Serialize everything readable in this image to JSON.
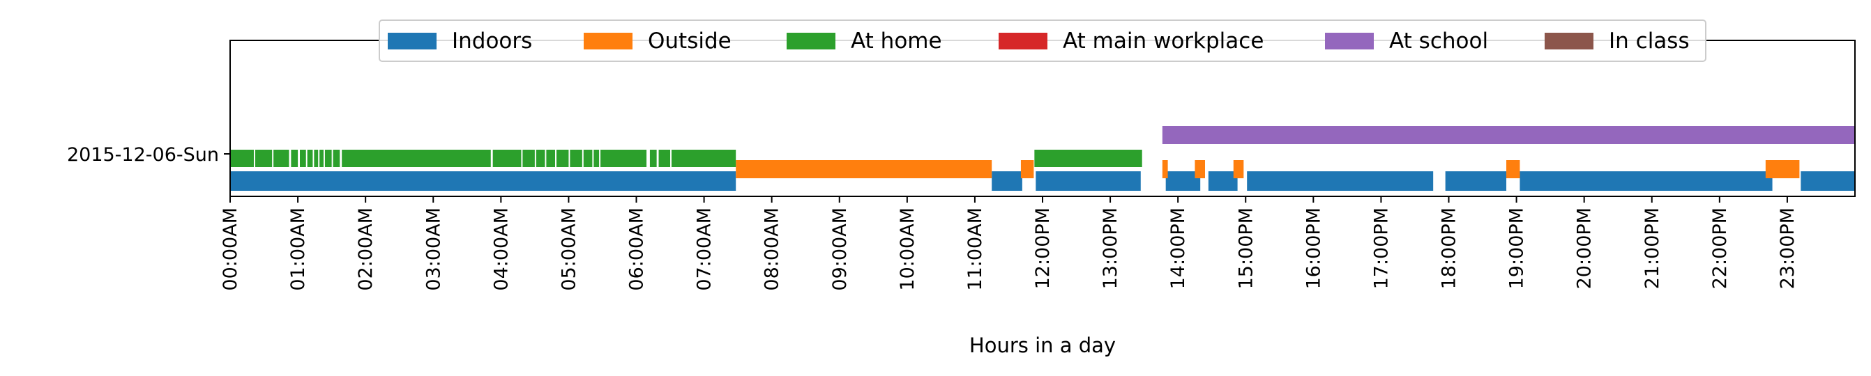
{
  "chart_data": {
    "type": "timeline",
    "title": "",
    "xlabel": "Hours in a day",
    "ylabel": "",
    "xlim": [
      0,
      24
    ],
    "x_unit": "hours",
    "grid": false,
    "legend_placement": "top-center",
    "rows": [
      "2015-12-06-Sun"
    ],
    "x_tick_labels": [
      "00:00AM",
      "01:00AM",
      "02:00AM",
      "03:00AM",
      "04:00AM",
      "05:00AM",
      "06:00AM",
      "07:00AM",
      "08:00AM",
      "09:00AM",
      "10:00AM",
      "11:00AM",
      "12:00PM",
      "13:00PM",
      "14:00PM",
      "15:00PM",
      "16:00PM",
      "17:00PM",
      "18:00PM",
      "19:00PM",
      "20:00PM",
      "21:00PM",
      "22:00PM",
      "23:00PM"
    ],
    "series": [
      {
        "name": "Indoors",
        "color": "#1f77b4",
        "intervals": [
          [
            0.0,
            7.47
          ],
          [
            11.25,
            11.7
          ],
          [
            11.9,
            13.45
          ],
          [
            13.82,
            14.33
          ],
          [
            14.45,
            14.88
          ],
          [
            15.02,
            17.77
          ],
          [
            17.95,
            18.85
          ],
          [
            19.05,
            22.78
          ],
          [
            23.2,
            24.0
          ]
        ]
      },
      {
        "name": "Outside",
        "color": "#ff7f0e",
        "intervals": [
          [
            7.47,
            11.25
          ],
          [
            11.68,
            11.87
          ],
          [
            13.77,
            13.85
          ],
          [
            14.25,
            14.4
          ],
          [
            14.82,
            14.97
          ],
          [
            18.85,
            19.05
          ],
          [
            22.68,
            23.18
          ]
        ]
      },
      {
        "name": "At home",
        "color": "#2ca02c",
        "intervals": [
          [
            0.0,
            0.35
          ],
          [
            0.37,
            0.62
          ],
          [
            0.64,
            0.87
          ],
          [
            0.9,
            1.0
          ],
          [
            1.03,
            1.12
          ],
          [
            1.14,
            1.22
          ],
          [
            1.24,
            1.3
          ],
          [
            1.32,
            1.38
          ],
          [
            1.4,
            1.5
          ],
          [
            1.52,
            1.62
          ],
          [
            1.65,
            3.85
          ],
          [
            3.88,
            4.3
          ],
          [
            4.32,
            4.5
          ],
          [
            4.52,
            4.65
          ],
          [
            4.67,
            4.8
          ],
          [
            4.82,
            5.0
          ],
          [
            5.02,
            5.2
          ],
          [
            5.22,
            5.35
          ],
          [
            5.37,
            5.45
          ],
          [
            5.47,
            6.15
          ],
          [
            6.2,
            6.3
          ],
          [
            6.33,
            6.5
          ],
          [
            6.52,
            7.47
          ],
          [
            11.88,
            13.47
          ]
        ]
      },
      {
        "name": "At main workplace",
        "color": "#d62728",
        "intervals": []
      },
      {
        "name": "At school",
        "color": "#9467bd",
        "intervals": [
          [
            13.77,
            24.0
          ]
        ]
      },
      {
        "name": "In class",
        "color": "#8c564b",
        "intervals": []
      }
    ]
  }
}
